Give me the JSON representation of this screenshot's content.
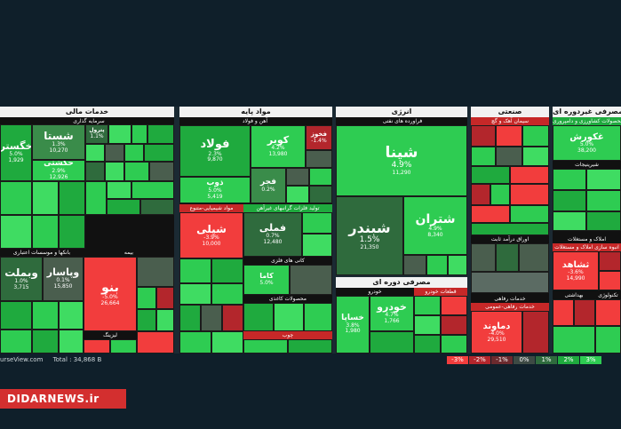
{
  "colors": {
    "strong_green": "#1faa3e",
    "green": "#2ecc52",
    "light_green": "#3fdc62",
    "dark_green": "#2f6b3d",
    "gray_green": "#4a5e4e",
    "red": "#f23d3d",
    "dark_red": "#b3262c",
    "neutral": "#5b6b63"
  },
  "sectors": {
    "financial": {
      "title": "خدمات مالی",
      "sub1": "سرمایه گذاری",
      "sub2": "بانکها و موسسات اعتباری",
      "sub3": "بیمه",
      "sub4": "لیزینگ"
    },
    "base_materials": {
      "title": "مواد پایه",
      "sub1": "آهن و فولاد",
      "sub2": "مواد شیمیایی-متنوع",
      "sub3": "تولید فلزات گرانبهای غیرآهن",
      "sub4": "کانی های فلزی",
      "sub5": "محصولات کاغذی",
      "sub6": "چوب"
    },
    "energy": {
      "title": "انرژی",
      "sub1": "فراورده های نفتی"
    },
    "durables": {
      "title": "مصرفی دوره ای",
      "sub1": "خودرو",
      "sub2": "قطعات خودرو"
    },
    "industrial": {
      "title": "صنعتی",
      "sub1": "سیمان آهک و گچ",
      "sub2": "اوراق درآمد ثابت",
      "sub3": "خدمات رفاهی",
      "sub4": "خدمات رفاهی-عمومی"
    },
    "non_durables": {
      "title": "مصرفی غیردوره ای",
      "sub1": "محصولات کشاورزی و دامپروری",
      "sub2": "شیرینیجات",
      "sub3": "املاک و مستغلات",
      "sub4": "انبوه سازی املاک و مستغلات",
      "sub5": "بهداشتی",
      "sub6": "تکنولوژی"
    }
  },
  "tiles": {
    "khegostar": {
      "name": "خگستر",
      "pct": "5.0%",
      "vol": "1,929"
    },
    "shasta": {
      "name": "شستا",
      "pct": "1.3%",
      "vol": "10,270"
    },
    "hekeshti": {
      "name": "حکشتی",
      "pct": "2.9%",
      "vol": "12,926"
    },
    "petrol": {
      "name": "پترول",
      "pct": "1.1%"
    },
    "vebmelat": {
      "name": "وبملت",
      "pct": "1.0%",
      "vol": "3,715"
    },
    "vepasar": {
      "name": "وپاسار",
      "pct": "0.1%",
      "vol": "15,850"
    },
    "bano": {
      "name": "بنو",
      "pct": "-5.0%",
      "vol": "26,664"
    },
    "fulad": {
      "name": "فولاد",
      "pct": "2.3%",
      "vol": "9,870"
    },
    "kavir": {
      "name": "کویر",
      "pct": "4.2%",
      "vol": "13,980"
    },
    "zob": {
      "name": "ذوب",
      "pct": "5.0%",
      "vol": "5,419"
    },
    "fajr": {
      "name": "فجر",
      "pct": "0.2%"
    },
    "foolad_kh": {
      "name": "فخوز",
      "pct": "-1.4%"
    },
    "shepli": {
      "name": "شپلی",
      "pct": "-3.9%",
      "vol": "10,000"
    },
    "femli": {
      "name": "فملی",
      "pct": "0.7%",
      "vol": "12,480"
    },
    "kama": {
      "name": "کاما",
      "pct": "5.0%"
    },
    "shepna": {
      "name": "شپنا",
      "pct": "4.9%",
      "vol": "11,290"
    },
    "shebandar": {
      "name": "شبندر",
      "pct": "1.5%",
      "vol": "21,350"
    },
    "shetran": {
      "name": "شتران",
      "pct": "4.9%",
      "vol": "8,340"
    },
    "khesaipa": {
      "name": "خساپا",
      "pct": "3.8%",
      "vol": "1,980"
    },
    "khodro": {
      "name": "خودرو",
      "pct": "4.7%",
      "vol": "1,766"
    },
    "damavand": {
      "name": "دماوند",
      "pct": "-4.0%",
      "vol": "29,510"
    },
    "ghekoorosh": {
      "name": "غکورش",
      "pct": "5.0%",
      "vol": "38,200"
    },
    "sheshahed": {
      "name": "ثشاهد",
      "pct": "-3.6%",
      "vol": "14,990"
    }
  },
  "footer": {
    "source": "urseView.com",
    "total": "Total : 34,868 B"
  },
  "legend": [
    "-3%",
    "-2%",
    "-1%",
    "0%",
    "1%",
    "2%",
    "3%"
  ],
  "brand": "DIDARNEWS.ir"
}
